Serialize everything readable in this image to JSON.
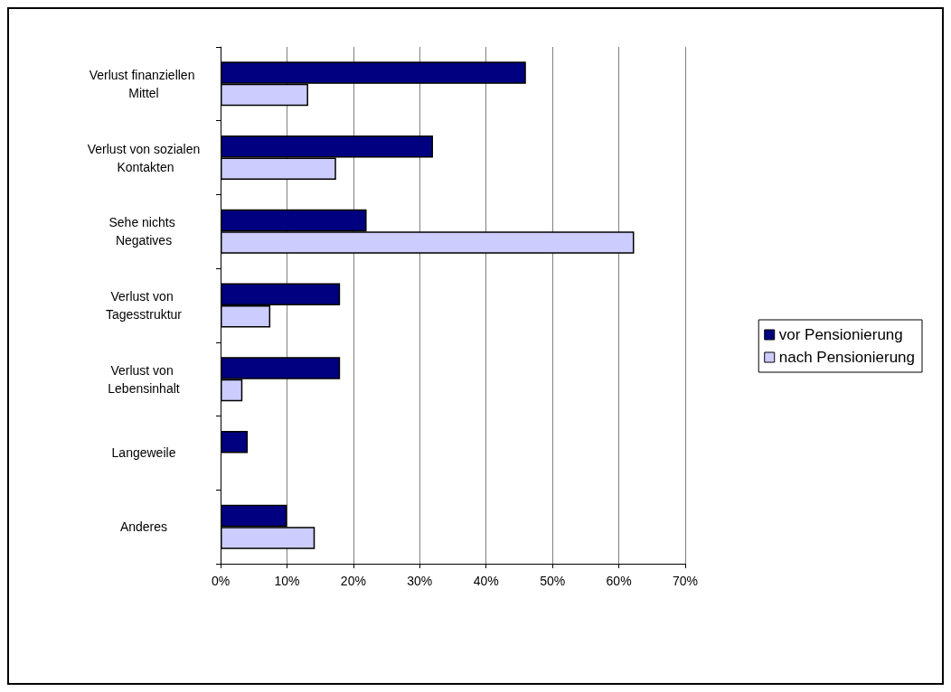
{
  "chart_data": {
    "type": "bar",
    "orientation": "horizontal",
    "categories": [
      "Verlust finanziellen Mittel",
      "Verlust von sozialen Kontakten",
      "Sehe nichts Negatives",
      "Verlust von Tagesstruktur",
      "Verlust von Lebensinhalt",
      "Langeweile",
      "Anderes"
    ],
    "series": [
      {
        "name": "vor Pensionierung",
        "color": "#000080",
        "values": [
          46,
          32,
          22,
          18,
          18,
          4.1,
          10
        ]
      },
      {
        "name": "nach Pensionierung",
        "color": "#ccccff",
        "values": [
          13.2,
          17.4,
          62.3,
          7.5,
          3.3,
          null,
          14.2
        ]
      }
    ],
    "xlim": [
      0,
      70
    ],
    "xticks": [
      {
        "value": 0,
        "label": "0%"
      },
      {
        "value": 10,
        "label": "10%"
      },
      {
        "value": 20,
        "label": "20%"
      },
      {
        "value": 30,
        "label": "30%"
      },
      {
        "value": 40,
        "label": "40%"
      },
      {
        "value": 50,
        "label": "50%"
      },
      {
        "value": 60,
        "label": "60%"
      },
      {
        "value": 70,
        "label": "70%"
      }
    ],
    "grid": "x",
    "legend": "right"
  }
}
